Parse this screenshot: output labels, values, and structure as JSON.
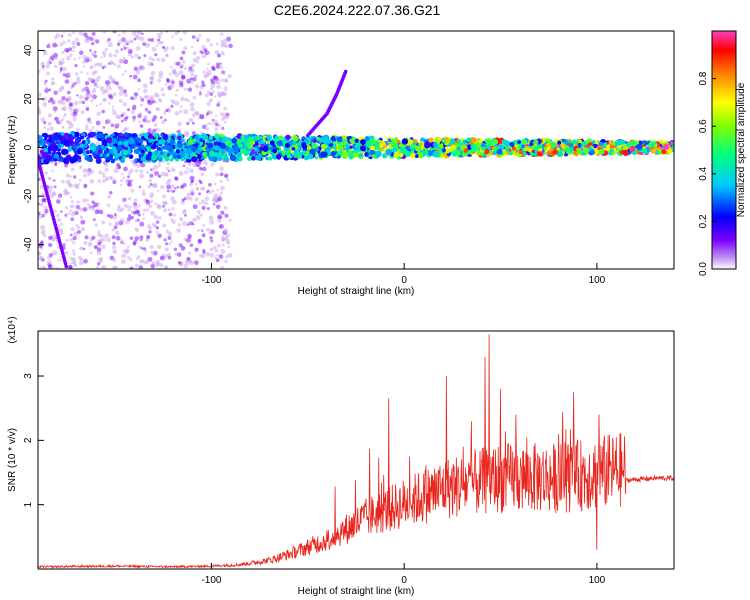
{
  "title": "C2E6.2024.222.07.36.G21",
  "chart_data": [
    {
      "type": "heatmap",
      "xlabel": "Height of straight line (km)",
      "ylabel": "Frequency (Hz)",
      "xlim": [
        -190,
        140
      ],
      "ylim": [
        -50,
        48
      ],
      "xticks": [
        -100,
        0,
        100
      ],
      "yticks": [
        -40,
        -20,
        0,
        20,
        40
      ],
      "colorbar": {
        "label": "Normalized spectral amplitude",
        "range": [
          0,
          1
        ],
        "ticks": [
          0.0,
          0.2,
          0.4,
          0.6,
          0.8
        ],
        "tick_labels": [
          "0.0",
          "0.2",
          "0.4",
          "0.6",
          "0.8"
        ],
        "colormap": [
          "#e8d8f0",
          "#7b00ff",
          "#0000ff",
          "#00c8ff",
          "#00ff80",
          "#80ff00",
          "#ffff00",
          "#ff8000",
          "#ff0000",
          "#ff40c0"
        ]
      },
      "features": [
        {
          "description": "main signal band",
          "x_range": [
            -190,
            140
          ],
          "frequency_center": 0,
          "frequency_halfwidth_start": 6,
          "frequency_halfwidth_end": 2
        },
        {
          "description": "rising streak",
          "x": [
            -50,
            -40,
            -35,
            -30
          ],
          "frequency": [
            5,
            14,
            22,
            32
          ]
        },
        {
          "description": "descending streak",
          "x": [
            -190,
            -185,
            -180,
            -175
          ],
          "frequency": [
            -5,
            -20,
            -35,
            -50
          ]
        }
      ]
    },
    {
      "type": "line",
      "xlabel": "Height of straight line (km)",
      "ylabel": "SNR (10 * v/v)",
      "y_multiplier": "(x10⁴)",
      "xlim": [
        -190,
        140
      ],
      "ylim": [
        0,
        3.7
      ],
      "xticks": [
        -100,
        0,
        100
      ],
      "yticks": [
        1,
        2,
        3
      ],
      "color": "#e8261e",
      "series": [
        {
          "x": [
            -190,
            -150,
            -120,
            -100,
            -85,
            -70,
            -60,
            -50,
            -40,
            -30,
            -20,
            -10,
            0,
            10,
            20,
            30,
            40,
            50,
            60,
            70,
            80,
            90,
            100,
            110,
            120,
            130,
            140
          ],
          "values": [
            0.03,
            0.04,
            0.03,
            0.04,
            0.06,
            0.12,
            0.2,
            0.3,
            0.4,
            0.55,
            0.7,
            0.8,
            0.9,
            1.0,
            1.1,
            1.15,
            1.2,
            1.25,
            1.25,
            1.25,
            1.25,
            1.28,
            1.32,
            1.35,
            1.38,
            1.4,
            1.4
          ],
          "peaks": [
            {
              "x": -8,
              "y": 2.65
            },
            {
              "x": 22,
              "y": 3.0
            },
            {
              "x": 42,
              "y": 3.3
            },
            {
              "x": 44,
              "y": 3.65
            },
            {
              "x": 50,
              "y": 2.8
            },
            {
              "x": 58,
              "y": 2.4
            },
            {
              "x": 88,
              "y": 2.75
            },
            {
              "x": 101,
              "y": 2.4
            },
            {
              "x": 100,
              "y": 0.3
            }
          ]
        }
      ]
    }
  ]
}
